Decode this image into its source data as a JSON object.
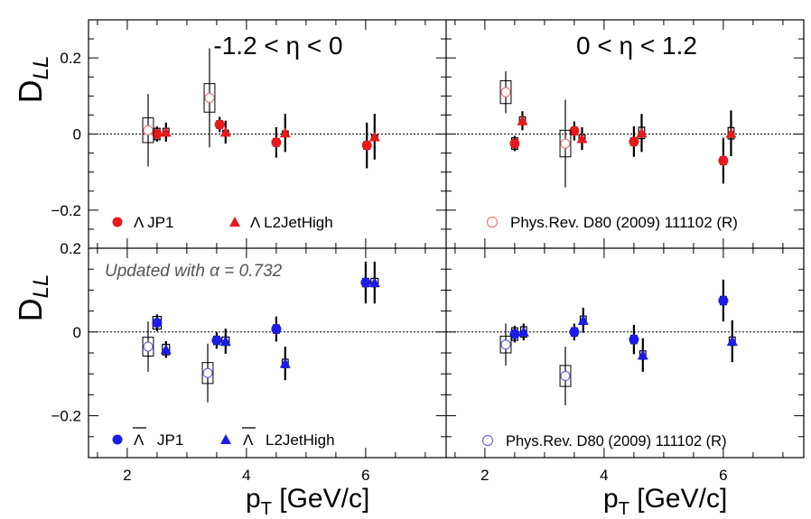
{
  "axes": {
    "y_label": "D",
    "y_label_sub": "LL",
    "x_label": "p",
    "x_label_sub": "T",
    "x_label_unit": " [GeV/c]",
    "x_ticks": [
      {
        "v": 2,
        "label": "2"
      },
      {
        "v": 4,
        "label": "4"
      },
      {
        "v": 6,
        "label": "6"
      }
    ],
    "x_range": [
      1.35,
      7.35
    ],
    "top_y_range": [
      -0.3,
      0.3
    ],
    "bottom_y_range": [
      -0.3,
      0.2
    ],
    "top_y_ticks": [
      {
        "v": 0.2,
        "label": "0.2"
      },
      {
        "v": 0,
        "label": "0"
      },
      {
        "v": -0.2,
        "label": "−0.2"
      }
    ],
    "bottom_y_ticks": [
      {
        "v": 0.2,
        "label": "0.2"
      },
      {
        "v": 0,
        "label": "0"
      },
      {
        "v": -0.2,
        "label": "−0.2"
      }
    ]
  },
  "annotations": {
    "eta_left": "-1.2 < η < 0",
    "eta_right": "0 < η < 1.2",
    "updated_note": "Updated with α = 0.732"
  },
  "legends": {
    "lambda_jp1": "Λ  JP1",
    "lambda_l2": "Λ  L2JetHigh",
    "antilambda_symbol": "Λ",
    "antilambda_jp1_text": "JP1",
    "antilambda_l2_text": "L2JetHigh",
    "previous_result": "Phys.Rev. D80 (2009) 111102 (R)"
  },
  "colors": {
    "lambda": "#e8191c",
    "antilambda": "#1c1ce8",
    "prev_lambda": "#e87c7c",
    "prev_antilambda": "#6b6bd6"
  },
  "chart_data": [
    {
      "type": "scatter",
      "panel": "top-left",
      "series": [
        {
          "name": "Λ JP1",
          "marker": "filled-circle",
          "points": [
            {
              "x": 2.5,
              "y": 0.0,
              "err": 0.02,
              "sys_w": 0.1,
              "sys_h": 0.03
            },
            {
              "x": 3.55,
              "y": 0.025,
              "err": 0.02,
              "sys_w": 0.1,
              "sys_h": 0.02
            },
            {
              "x": 4.5,
              "y": -0.022,
              "err": 0.04,
              "sys_w": 0.1,
              "sys_h": 0.02
            },
            {
              "x": 6.02,
              "y": -0.03,
              "err": 0.06,
              "sys_w": 0.1,
              "sys_h": 0.02
            }
          ]
        },
        {
          "name": "Λ L2JetHigh",
          "marker": "filled-triangle",
          "points": [
            {
              "x": 2.65,
              "y": 0.005,
              "err": 0.025,
              "sys_w": 0.1,
              "sys_h": 0.02
            },
            {
              "x": 3.65,
              "y": 0.005,
              "err": 0.03,
              "sys_w": 0.1,
              "sys_h": 0.01
            },
            {
              "x": 4.65,
              "y": 0.003,
              "err": 0.05,
              "sys_w": 0.1,
              "sys_h": 0.01
            },
            {
              "x": 6.15,
              "y": -0.007,
              "err": 0.06,
              "sys_w": 0.1,
              "sys_h": 0.01
            }
          ]
        },
        {
          "name": "Phys.Rev. D80 (2009) 111102 (R)",
          "marker": "open-circle",
          "points": [
            {
              "x": 2.35,
              "y": 0.01,
              "err": 0.095,
              "sys_w": 0.18,
              "sys_h": 0.065
            },
            {
              "x": 3.38,
              "y": 0.095,
              "err": 0.13,
              "sys_w": 0.18,
              "sys_h": 0.075
            }
          ]
        }
      ]
    },
    {
      "type": "scatter",
      "panel": "top-right",
      "series": [
        {
          "name": "Λ JP1",
          "marker": "filled-circle",
          "points": [
            {
              "x": 2.5,
              "y": -0.025,
              "err": 0.02,
              "sys_w": 0.1,
              "sys_h": 0.03
            },
            {
              "x": 3.5,
              "y": 0.008,
              "err": 0.025,
              "sys_w": 0.1,
              "sys_h": 0.02
            },
            {
              "x": 4.5,
              "y": -0.02,
              "err": 0.04,
              "sys_w": 0.1,
              "sys_h": 0.02
            },
            {
              "x": 6.0,
              "y": -0.07,
              "err": 0.06,
              "sys_w": 0.1,
              "sys_h": 0.02
            }
          ]
        },
        {
          "name": "Λ L2JetHigh",
          "marker": "filled-triangle",
          "points": [
            {
              "x": 2.63,
              "y": 0.035,
              "err": 0.025,
              "sys_w": 0.1,
              "sys_h": 0.02
            },
            {
              "x": 3.63,
              "y": -0.012,
              "err": 0.03,
              "sys_w": 0.1,
              "sys_h": 0.02
            },
            {
              "x": 4.63,
              "y": 0.003,
              "err": 0.05,
              "sys_w": 0.1,
              "sys_h": 0.03
            },
            {
              "x": 6.13,
              "y": 0.002,
              "err": 0.06,
              "sys_w": 0.1,
              "sys_h": 0.03
            }
          ]
        },
        {
          "name": "Phys.Rev. D80 (2009) 111102 (R)",
          "marker": "open-circle",
          "points": [
            {
              "x": 2.35,
              "y": 0.11,
              "err": 0.055,
              "sys_w": 0.18,
              "sys_h": 0.06
            },
            {
              "x": 3.35,
              "y": -0.025,
              "err": 0.115,
              "sys_w": 0.18,
              "sys_h": 0.07
            }
          ]
        }
      ]
    },
    {
      "type": "scatter",
      "panel": "bottom-left",
      "series": [
        {
          "name": "Λ̄ JP1",
          "marker": "filled-circle",
          "points": [
            {
              "x": 2.5,
              "y": 0.022,
              "err": 0.02,
              "sys_w": 0.14,
              "sys_h": 0.03
            },
            {
              "x": 3.5,
              "y": -0.02,
              "err": 0.02,
              "sys_w": 0.1,
              "sys_h": 0.02
            },
            {
              "x": 4.5,
              "y": 0.007,
              "err": 0.03,
              "sys_w": 0.1,
              "sys_h": 0.02
            },
            {
              "x": 6.0,
              "y": 0.118,
              "err": 0.05,
              "sys_w": 0.1,
              "sys_h": 0.02
            }
          ]
        },
        {
          "name": "Λ̄ L2JetHigh",
          "marker": "filled-triangle",
          "points": [
            {
              "x": 2.65,
              "y": -0.042,
              "err": 0.02,
              "sys_w": 0.12,
              "sys_h": 0.025
            },
            {
              "x": 3.65,
              "y": -0.022,
              "err": 0.03,
              "sys_w": 0.12,
              "sys_h": 0.02
            },
            {
              "x": 4.65,
              "y": -0.075,
              "err": 0.04,
              "sys_w": 0.1,
              "sys_h": 0.02
            },
            {
              "x": 6.15,
              "y": 0.118,
              "err": 0.05,
              "sys_w": 0.12,
              "sys_h": 0.02
            }
          ]
        },
        {
          "name": "Phys.Rev. D80 (2009) 111102 (R)",
          "marker": "open-circle",
          "points": [
            {
              "x": 2.35,
              "y": -0.035,
              "err": 0.06,
              "sys_w": 0.18,
              "sys_h": 0.045
            },
            {
              "x": 3.35,
              "y": -0.098,
              "err": 0.07,
              "sys_w": 0.18,
              "sys_h": 0.05
            }
          ]
        }
      ]
    },
    {
      "type": "scatter",
      "panel": "bottom-right",
      "series": [
        {
          "name": "Λ̄ JP1",
          "marker": "filled-circle",
          "points": [
            {
              "x": 2.5,
              "y": -0.005,
              "err": 0.02,
              "sys_w": 0.1,
              "sys_h": 0.03
            },
            {
              "x": 3.5,
              "y": 0.0,
              "err": 0.02,
              "sys_w": 0.1,
              "sys_h": 0.02
            },
            {
              "x": 4.5,
              "y": -0.018,
              "err": 0.035,
              "sys_w": 0.1,
              "sys_h": 0.02
            },
            {
              "x": 6.0,
              "y": 0.075,
              "err": 0.05,
              "sys_w": 0.1,
              "sys_h": 0.02
            }
          ]
        },
        {
          "name": "Λ̄ L2JetHigh",
          "marker": "filled-triangle",
          "points": [
            {
              "x": 2.65,
              "y": 0.0,
              "err": 0.02,
              "sys_w": 0.1,
              "sys_h": 0.025
            },
            {
              "x": 3.65,
              "y": 0.028,
              "err": 0.03,
              "sys_w": 0.1,
              "sys_h": 0.02
            },
            {
              "x": 4.65,
              "y": -0.055,
              "err": 0.04,
              "sys_w": 0.1,
              "sys_h": 0.02
            },
            {
              "x": 6.15,
              "y": -0.022,
              "err": 0.05,
              "sys_w": 0.1,
              "sys_h": 0.02
            }
          ]
        },
        {
          "name": "Phys.Rev. D80 (2009) 111102 (R)",
          "marker": "open-circle",
          "points": [
            {
              "x": 2.35,
              "y": -0.03,
              "err": 0.05,
              "sys_w": 0.18,
              "sys_h": 0.04
            },
            {
              "x": 3.35,
              "y": -0.105,
              "err": 0.07,
              "sys_w": 0.18,
              "sys_h": 0.05
            }
          ]
        }
      ]
    }
  ]
}
